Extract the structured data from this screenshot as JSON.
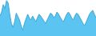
{
  "chart_data": {
    "type": "area",
    "color": "#5bc4f0",
    "series": [
      {
        "color": "#3aa8d8",
        "values": [
          85,
          92,
          105,
          98,
          112,
          108,
          88,
          72,
          65,
          75,
          90,
          85,
          78,
          68,
          60,
          72,
          80,
          88,
          82,
          78,
          85,
          80,
          75,
          82,
          88,
          85,
          80,
          76,
          72,
          78,
          85,
          90,
          88,
          82,
          85,
          92,
          88,
          82,
          78,
          75,
          82,
          88,
          92,
          88,
          82,
          78,
          85,
          90,
          88,
          82,
          78,
          72,
          68,
          75,
          82,
          88,
          92,
          95,
          88,
          82
        ]
      }
    ],
    "ylim": [
      50,
      113
    ],
    "tick_labels": false,
    "grid": false
  }
}
